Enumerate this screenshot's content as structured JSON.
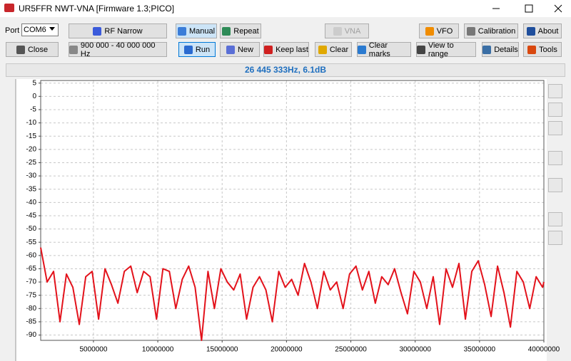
{
  "window": {
    "title": "UR5FFR NWT-VNA [Firmware 1.3;PICO]"
  },
  "toolbar": {
    "port_label": "Port",
    "port_value": "COM6",
    "row1": [
      "RF Narrow",
      "Manual",
      "Repeat",
      "VNA",
      "VFO",
      "Calibration",
      "About"
    ],
    "row2": [
      "Close",
      "900 000 - 40 000 000 Hz",
      "Run",
      "New",
      "Keep last",
      "Clear",
      "Clear marks",
      "View to range",
      "Details",
      "Tools"
    ]
  },
  "status": "26 445 333Hz, 6.1dB",
  "chart_data": {
    "type": "line",
    "color": "#e3121b",
    "grid": true,
    "x": [
      900000,
      1400000,
      1900000,
      2400000,
      2900000,
      3400000,
      3900000,
      4400000,
      4900000,
      5400000,
      5900000,
      6400000,
      6900000,
      7400000,
      7900000,
      8400000,
      8900000,
      9400000,
      9900000,
      10400000,
      10900000,
      11400000,
      11900000,
      12400000,
      12900000,
      13400000,
      13900000,
      14400000,
      14900000,
      15400000,
      15900000,
      16400000,
      16900000,
      17400000,
      17900000,
      18400000,
      18900000,
      19400000,
      19900000,
      20400000,
      20900000,
      21400000,
      21900000,
      22400000,
      22900000,
      23400000,
      23900000,
      24400000,
      24900000,
      25400000,
      25900000,
      26400000,
      26900000,
      27400000,
      27900000,
      28400000,
      28900000,
      29400000,
      29900000,
      30400000,
      30900000,
      31400000,
      31900000,
      32400000,
      32900000,
      33400000,
      33900000,
      34400000,
      34900000,
      35400000,
      35900000,
      36400000,
      36900000,
      37400000,
      37900000,
      38400000,
      38900000,
      39400000,
      39900000,
      40000000
    ],
    "values": [
      -57,
      -70,
      -66,
      -85,
      -67,
      -72,
      -86,
      -68,
      -66,
      -84,
      -65,
      -71,
      -78,
      -66,
      -64,
      -74,
      -66,
      -68,
      -84,
      -65,
      -66,
      -80,
      -69,
      -64,
      -72,
      -92,
      -66,
      -80,
      -65,
      -70,
      -73,
      -67,
      -84,
      -72,
      -68,
      -73,
      -85,
      -66,
      -72,
      -69,
      -75,
      -63,
      -70,
      -80,
      -66,
      -73,
      -70,
      -80,
      -67,
      -64,
      -73,
      -66,
      -78,
      -68,
      -71,
      -65,
      -74,
      -82,
      -66,
      -70,
      -80,
      -68,
      -86,
      -65,
      -72,
      -63,
      -84,
      -66,
      -62,
      -71,
      -83,
      -64,
      -74,
      -87,
      -66,
      -70,
      -80,
      -68,
      -72,
      -70
    ],
    "xlim": [
      900000,
      40000000
    ],
    "ylim": [
      -92,
      6
    ],
    "xticks": [
      5000000,
      10000000,
      15000000,
      20000000,
      25000000,
      30000000,
      35000000,
      40000000
    ],
    "yticks": [
      5,
      0,
      -5,
      -10,
      -15,
      -20,
      -25,
      -30,
      -35,
      -40,
      -45,
      -50,
      -55,
      -60,
      -65,
      -70,
      -75,
      -80,
      -85,
      -90
    ]
  }
}
